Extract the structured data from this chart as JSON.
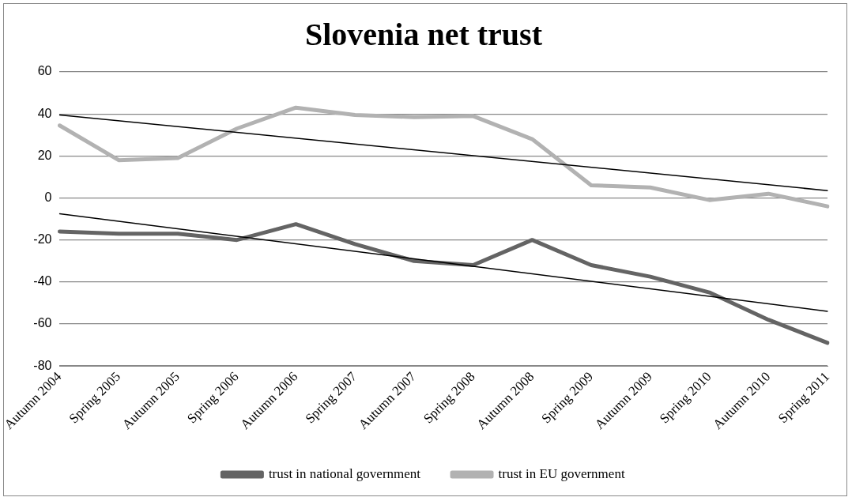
{
  "chart_data": {
    "type": "line",
    "title": "Slovenia net trust",
    "categories": [
      "Autumn 2004",
      "Spring 2005",
      "Autumn 2005",
      "Spring 2006",
      "Autumn 2006",
      "Spring 2007",
      "Autumn 2007",
      "Spring 2008",
      "Autumn 2008",
      "Spring 2009",
      "Autumn 2009",
      "Spring 2010",
      "Autumn 2010",
      "Spring 2011"
    ],
    "series": [
      {
        "name": "trust in national government",
        "color": "#646464",
        "values": [
          -16,
          -17,
          -17,
          -20,
          -12.5,
          -22,
          -30,
          -32,
          -20,
          -32,
          -37.5,
          -45,
          -58,
          -69
        ]
      },
      {
        "name": "trust in EU government",
        "color": "#b2b2b2",
        "values": [
          34.5,
          18,
          19,
          33,
          43,
          39.5,
          38.5,
          39,
          28,
          6,
          5,
          -1,
          2,
          -4
        ]
      },
      {
        "type": "line",
        "color": "#000000",
        "x": [
          "Autumn 2004",
          "Spring 2011"
        ],
        "values": [
          -7.5,
          -54
        ]
      },
      {
        "type": "line",
        "color": "#000000",
        "x": [
          "Autumn 2004",
          "Spring 2011"
        ],
        "values": [
          39.5,
          3.5
        ]
      }
    ],
    "ylim": [
      -80,
      60
    ],
    "yticks": [
      -80,
      -60,
      -40,
      -20,
      0,
      20,
      40,
      60
    ],
    "grid": "y",
    "legend": "bottom",
    "marker": "none",
    "line_style": "solid"
  }
}
